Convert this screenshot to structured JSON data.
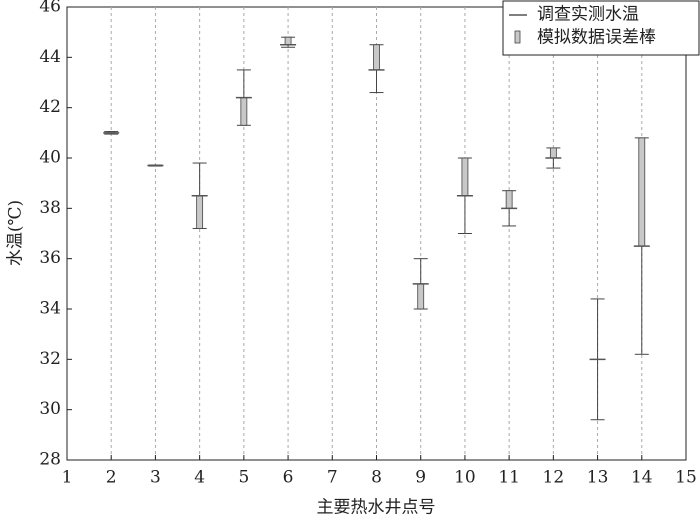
{
  "chart_data": {
    "type": "errorbar",
    "xlabel": "主要热水井点号",
    "ylabel": "水温(℃)",
    "x": [
      2,
      3,
      4,
      5,
      6,
      8,
      9,
      10,
      11,
      12,
      13,
      14
    ],
    "series": [
      {
        "name": "调查实测水温",
        "color": "#555555",
        "values": [
          41.0,
          39.7,
          38.5,
          42.4,
          44.5,
          43.5,
          35.0,
          38.5,
          38.0,
          40.0,
          32.0,
          36.5
        ]
      },
      {
        "name": "模拟数据误差棒",
        "color": "#c8c8c8",
        "values": [
          41.05,
          39.72,
          37.2,
          41.3,
          44.8,
          44.5,
          34.0,
          40.0,
          38.7,
          40.4,
          32.0,
          40.8
        ],
        "low": [
          40.95,
          39.68,
          37.2,
          41.3,
          44.4,
          42.6,
          34.0,
          37.0,
          37.3,
          39.6,
          29.6,
          32.2
        ],
        "high": [
          41.05,
          39.72,
          39.8,
          43.5,
          44.8,
          44.5,
          36.0,
          40.0,
          38.7,
          40.4,
          34.4,
          40.8
        ]
      }
    ],
    "xlim": [
      1,
      15
    ],
    "xticks": [
      1,
      2,
      3,
      4,
      5,
      6,
      7,
      8,
      9,
      10,
      11,
      12,
      13,
      14,
      15
    ],
    "ylim": [
      28,
      46
    ],
    "yticks": [
      28,
      30,
      32,
      34,
      36,
      38,
      40,
      42,
      44,
      46
    ],
    "grid": true,
    "legend": "upper right"
  }
}
